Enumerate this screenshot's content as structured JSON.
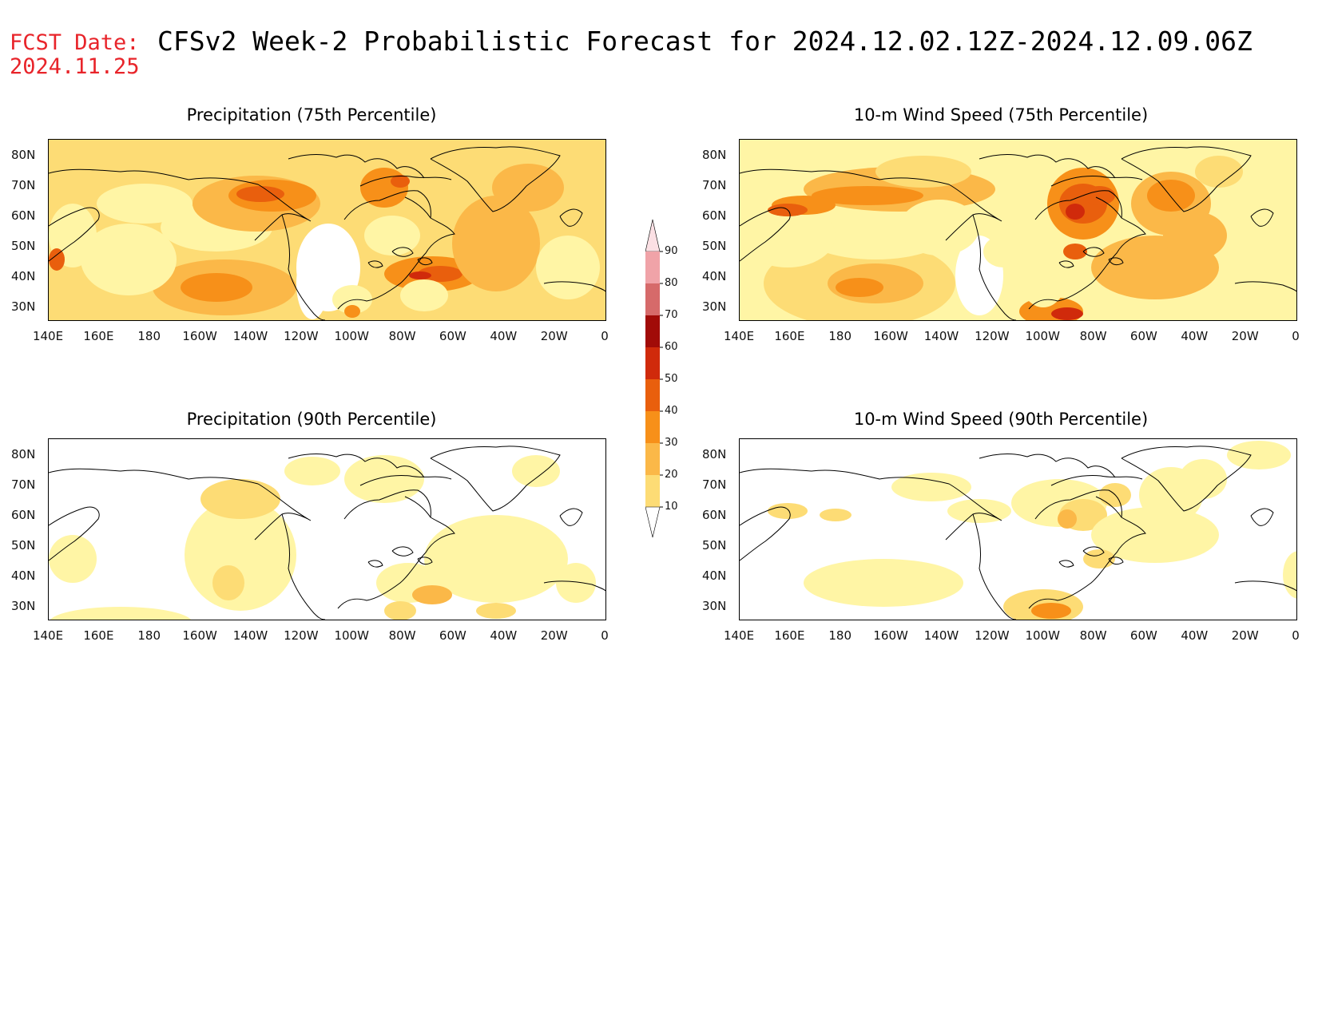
{
  "header": {
    "fcst_label": "FCST Date:",
    "fcst_date": "2024.11.25",
    "title": "CFSv2 Week-2 Probabilistic Forecast for 2024.12.02.12Z-2024.12.09.06Z"
  },
  "colors": {
    "levels": [
      "#ffffff",
      "#fff5a5",
      "#fddc75",
      "#fbb848",
      "#f79019",
      "#e95f0d",
      "#d02a0b",
      "#a10b08",
      "#d66a6a",
      "#f0a3a8",
      "#fbe0e4"
    ],
    "coast": "#000000",
    "label_red": "#e8242a"
  },
  "axes": {
    "lat_labels": [
      "80N",
      "70N",
      "60N",
      "50N",
      "40N",
      "30N"
    ],
    "lon_labels": [
      "140E",
      "160E",
      "180",
      "160W",
      "140W",
      "120W",
      "100W",
      "80W",
      "60W",
      "40W",
      "20W",
      "0"
    ]
  },
  "colorbar": {
    "levels": [
      10,
      20,
      30,
      40,
      50,
      60,
      70,
      80,
      90
    ],
    "labels": [
      "10",
      "20",
      "30",
      "40",
      "50",
      "60",
      "70",
      "80",
      "90"
    ]
  },
  "panels": [
    {
      "id": "precip75",
      "title": "Precipitation (75th Percentile)"
    },
    {
      "id": "wind75",
      "title": "10-m Wind Speed (75th Percentile)"
    },
    {
      "id": "precip90",
      "title": "Precipitation (90th Percentile)"
    },
    {
      "id": "wind90",
      "title": "10-m Wind Speed (90th Percentile)"
    }
  ]
}
